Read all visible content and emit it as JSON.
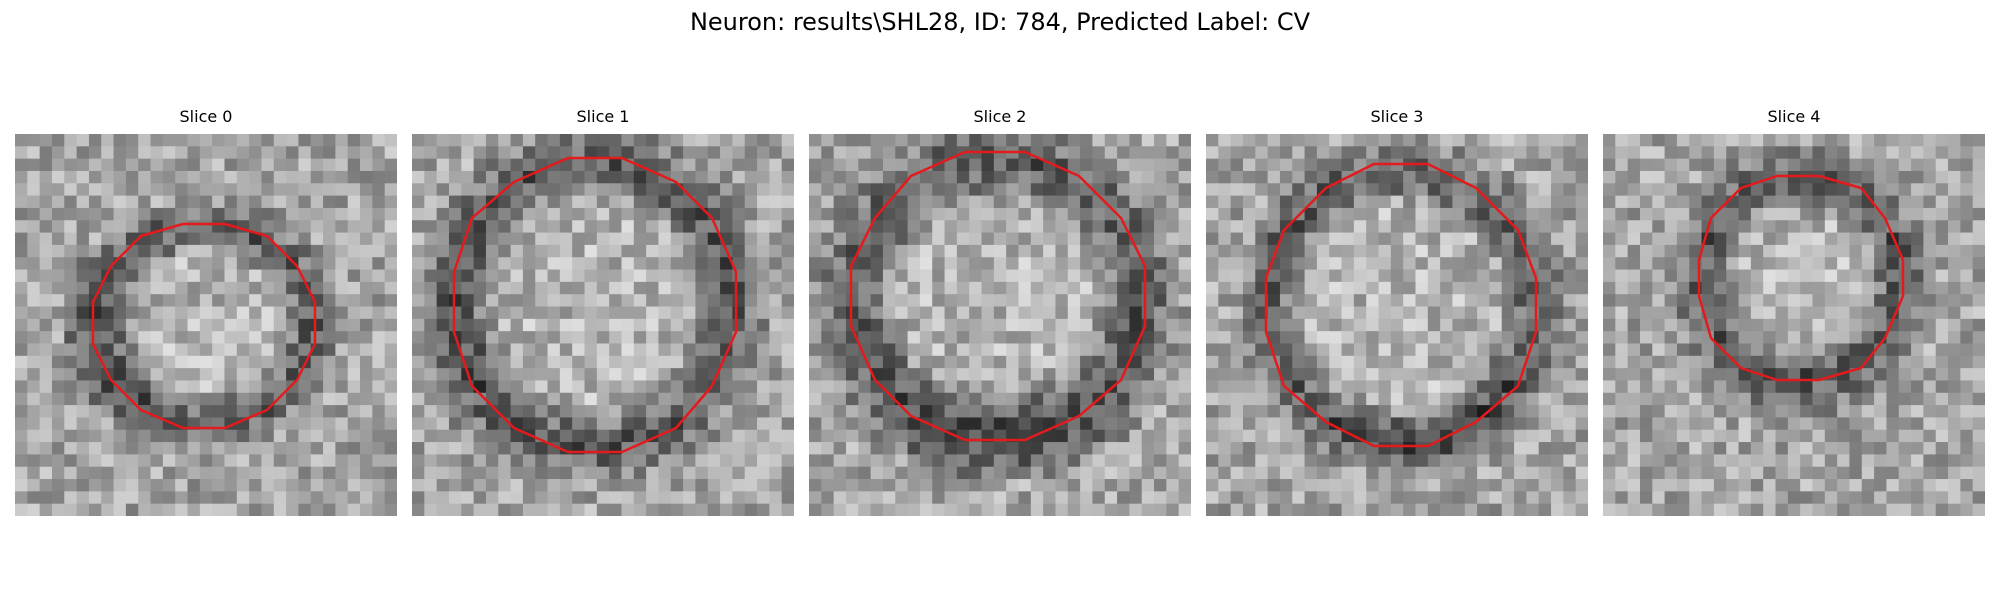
{
  "figure": {
    "title": "Neuron: results\\SHL28, ID: 784, Predicted Label: CV",
    "contour_color": "#e41a1c",
    "colormap": "gray"
  },
  "slices": [
    {
      "title": "Slice 0"
    },
    {
      "title": "Slice 1"
    },
    {
      "title": "Slice 2"
    },
    {
      "title": "Slice 3"
    },
    {
      "title": "Slice 4"
    }
  ]
}
